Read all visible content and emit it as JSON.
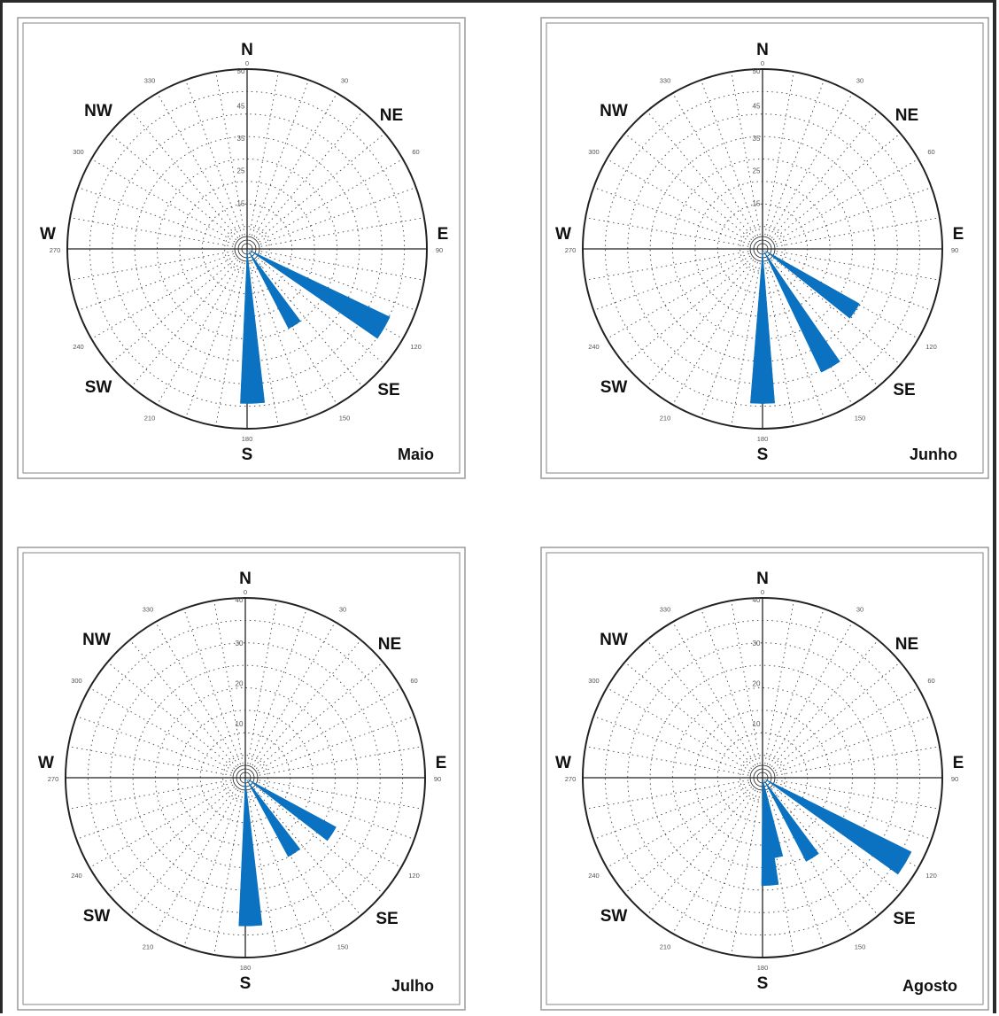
{
  "colors": {
    "petal": "#0a72c0",
    "line": "#222222",
    "grid": "#444444",
    "panel_border": "#9a9a9a",
    "background": "#ffffff"
  },
  "compass": {
    "N": "N",
    "NE": "NE",
    "E": "E",
    "SE": "SE",
    "S": "S",
    "SW": "SW",
    "W": "W",
    "NW": "NW"
  },
  "degree_labels": [
    "0",
    "30",
    "60",
    "90",
    "120",
    "150",
    "180",
    "210",
    "240",
    "270",
    "300",
    "330"
  ],
  "chart_data": [
    {
      "type": "polar-bar",
      "title": "Maio",
      "rmax": 50,
      "ring_labels": [
        "15",
        "25",
        "35",
        "45",
        "50"
      ],
      "grid": true,
      "bars": [
        {
          "direction": 120,
          "value": 44
        },
        {
          "direction": 148,
          "value": 25
        },
        {
          "direction": 178,
          "value": 43
        }
      ]
    },
    {
      "type": "polar-bar",
      "title": "Junho",
      "rmax": 50,
      "ring_labels": [
        "15",
        "25",
        "35",
        "45",
        "50"
      ],
      "grid": true,
      "bars": [
        {
          "direction": 124,
          "value": 31
        },
        {
          "direction": 150,
          "value": 38
        },
        {
          "direction": 180,
          "value": 43
        }
      ]
    },
    {
      "type": "polar-bar",
      "title": "Julho",
      "rmax": 40,
      "ring_labels": [
        "10",
        "20",
        "30",
        "40"
      ],
      "grid": true,
      "bars": [
        {
          "direction": 123,
          "value": 23
        },
        {
          "direction": 147,
          "value": 20
        },
        {
          "direction": 178,
          "value": 33
        }
      ]
    },
    {
      "type": "polar-bar",
      "title": "Agosto",
      "rmax": 40,
      "ring_labels": [
        "10",
        "20",
        "30",
        "40"
      ],
      "grid": true,
      "bars": [
        {
          "direction": 121,
          "value": 37
        },
        {
          "direction": 148,
          "value": 21
        },
        {
          "direction": 170,
          "value": 18
        },
        {
          "direction": 176,
          "value": 24
        }
      ]
    }
  ]
}
